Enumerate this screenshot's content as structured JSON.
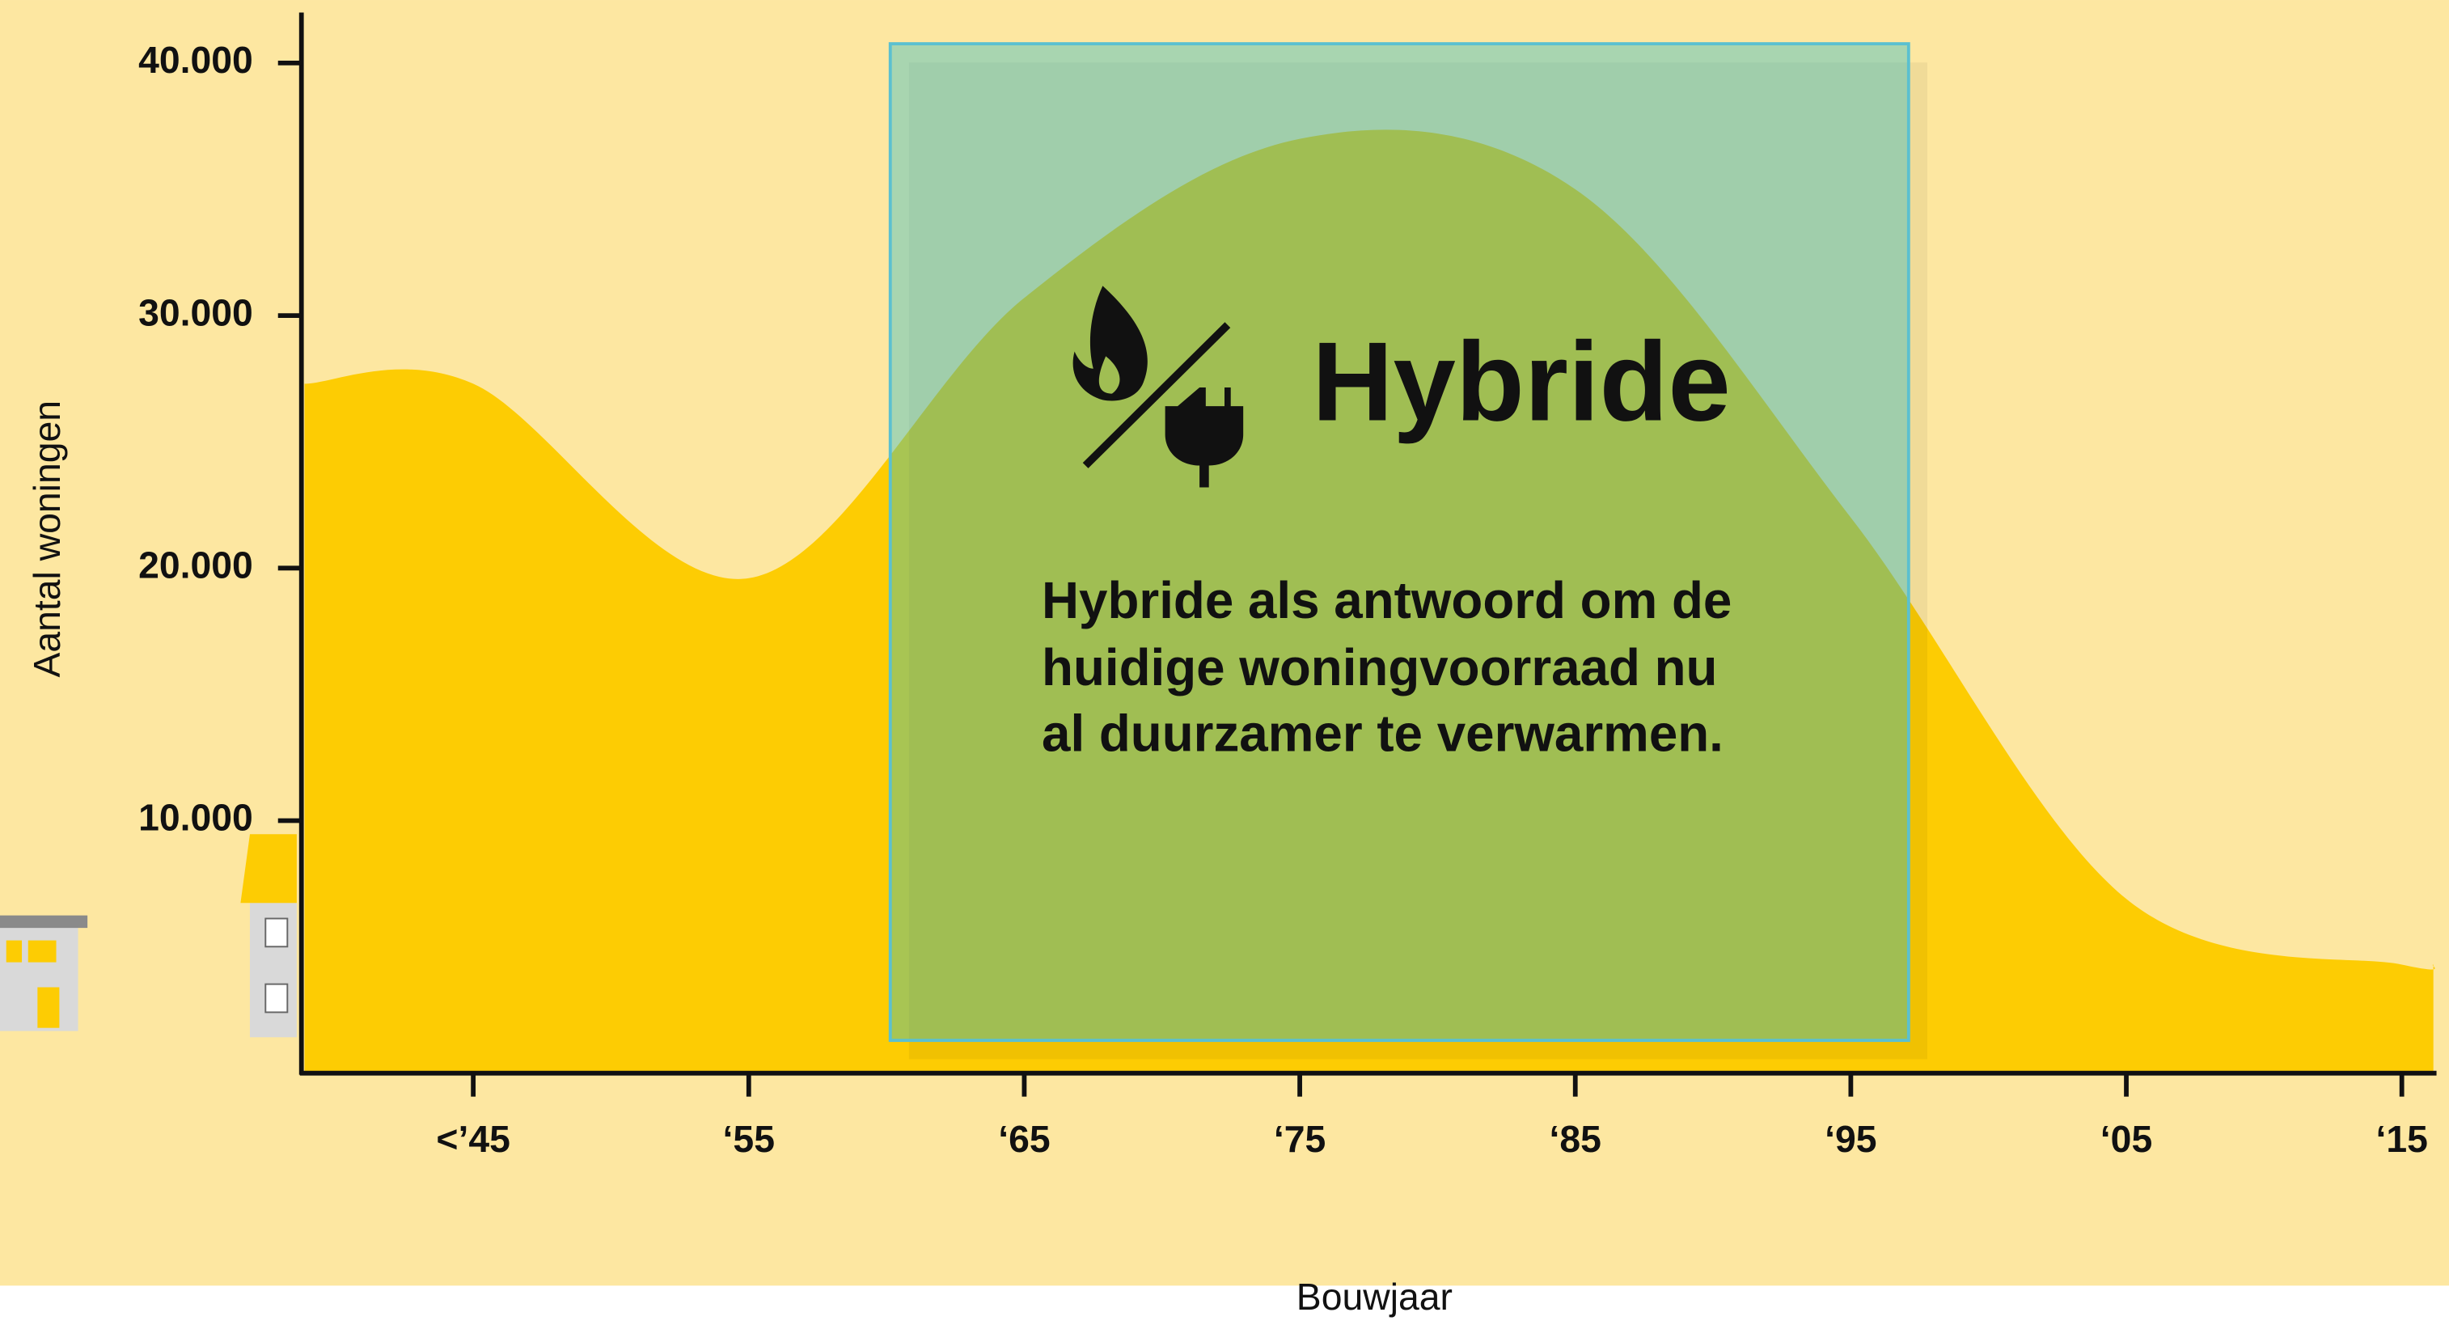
{
  "chart_data": {
    "type": "area",
    "categories": [
      "<’45",
      "‘55",
      "‘65",
      "‘75",
      "‘85",
      "‘95",
      "‘05",
      "‘15"
    ],
    "values": [
      27300,
      19600,
      30700,
      37000,
      35000,
      22000,
      6900,
      4300
    ],
    "color": "#fdcc03",
    "ylim": [
      0,
      42000
    ],
    "yticks": [
      {
        "value": 10000,
        "label": "10.000"
      },
      {
        "value": 20000,
        "label": "20.000"
      },
      {
        "value": 30000,
        "label": "30.000"
      },
      {
        "value": 40000,
        "label": "40.000"
      }
    ],
    "xlabel": "Bouwjaar",
    "ylabel": "Aantal woningen",
    "annotation": {
      "title": "Hybride",
      "body_lines": [
        "Hybride als antwoord om de",
        "huidige woningvoorraad nu",
        "al duurzamer te verwarmen."
      ]
    }
  }
}
